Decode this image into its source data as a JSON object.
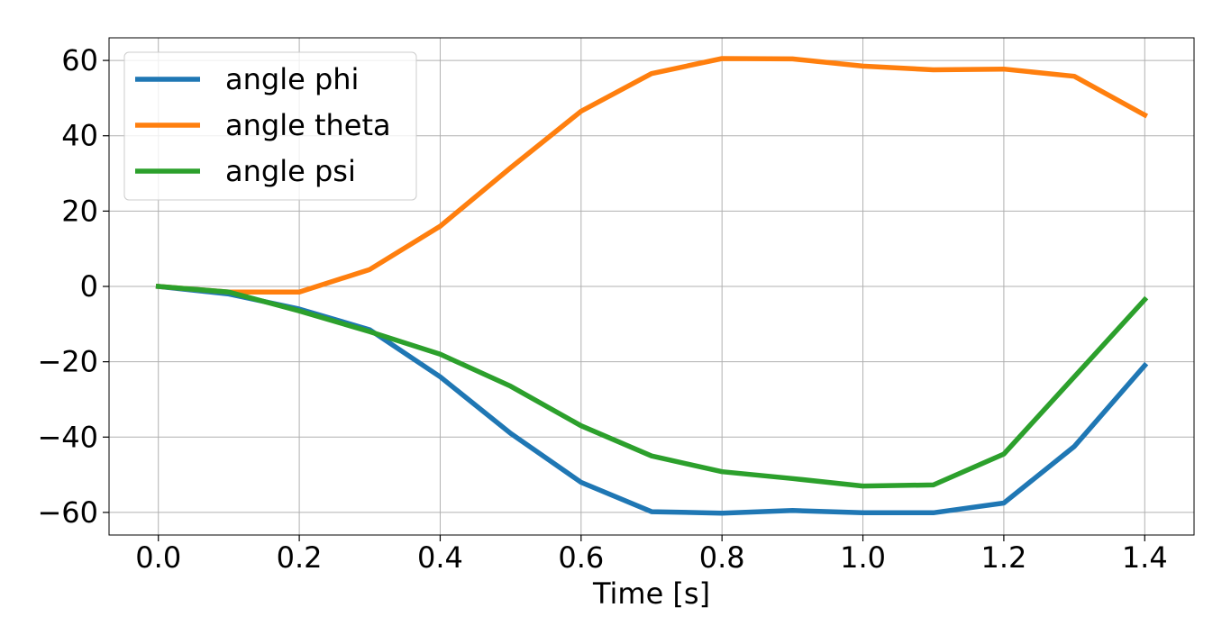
{
  "chart_data": {
    "type": "line",
    "title": "",
    "xlabel": "Time [s]",
    "ylabel": "",
    "x": [
      0.0,
      0.1,
      0.2,
      0.3,
      0.4,
      0.5,
      0.6,
      0.7,
      0.8,
      0.9,
      1.0,
      1.1,
      1.2,
      1.3,
      1.4
    ],
    "xlim": [
      -0.07,
      1.47
    ],
    "ylim": [
      -66,
      66
    ],
    "xticks": [
      0.0,
      0.2,
      0.4,
      0.6,
      0.8,
      1.0,
      1.2,
      1.4
    ],
    "xtick_labels": [
      "0.0",
      "0.2",
      "0.4",
      "0.6",
      "0.8",
      "1.0",
      "1.2",
      "1.4"
    ],
    "yticks": [
      60,
      40,
      20,
      0,
      -20,
      -40,
      -60
    ],
    "ytick_labels": [
      "60",
      "40",
      "20",
      "0",
      "−20",
      "−40",
      "−60"
    ],
    "grid": true,
    "legend_position": "top-left",
    "series": [
      {
        "name": "angle phi",
        "color": "#1f77b4",
        "values": [
          0,
          -2,
          -6,
          -11.5,
          -24,
          -39,
          -52,
          -59.8,
          -60.2,
          -59.5,
          -60.1,
          -60.1,
          -57.5,
          -42.5,
          -21
        ]
      },
      {
        "name": "angle theta",
        "color": "#ff7f0e",
        "values": [
          0,
          -1.5,
          -1.5,
          4.5,
          16,
          31.5,
          46.5,
          56.5,
          60.5,
          60.4,
          58.5,
          57.5,
          57.7,
          55.8,
          45.5
        ]
      },
      {
        "name": "angle psi",
        "color": "#2ca02c",
        "values": [
          0,
          -1.5,
          -6.5,
          -12,
          -18,
          -26.5,
          -37,
          -45,
          -49.2,
          -51,
          -53,
          -52.7,
          -44.5,
          -24,
          -3.5
        ]
      }
    ]
  }
}
